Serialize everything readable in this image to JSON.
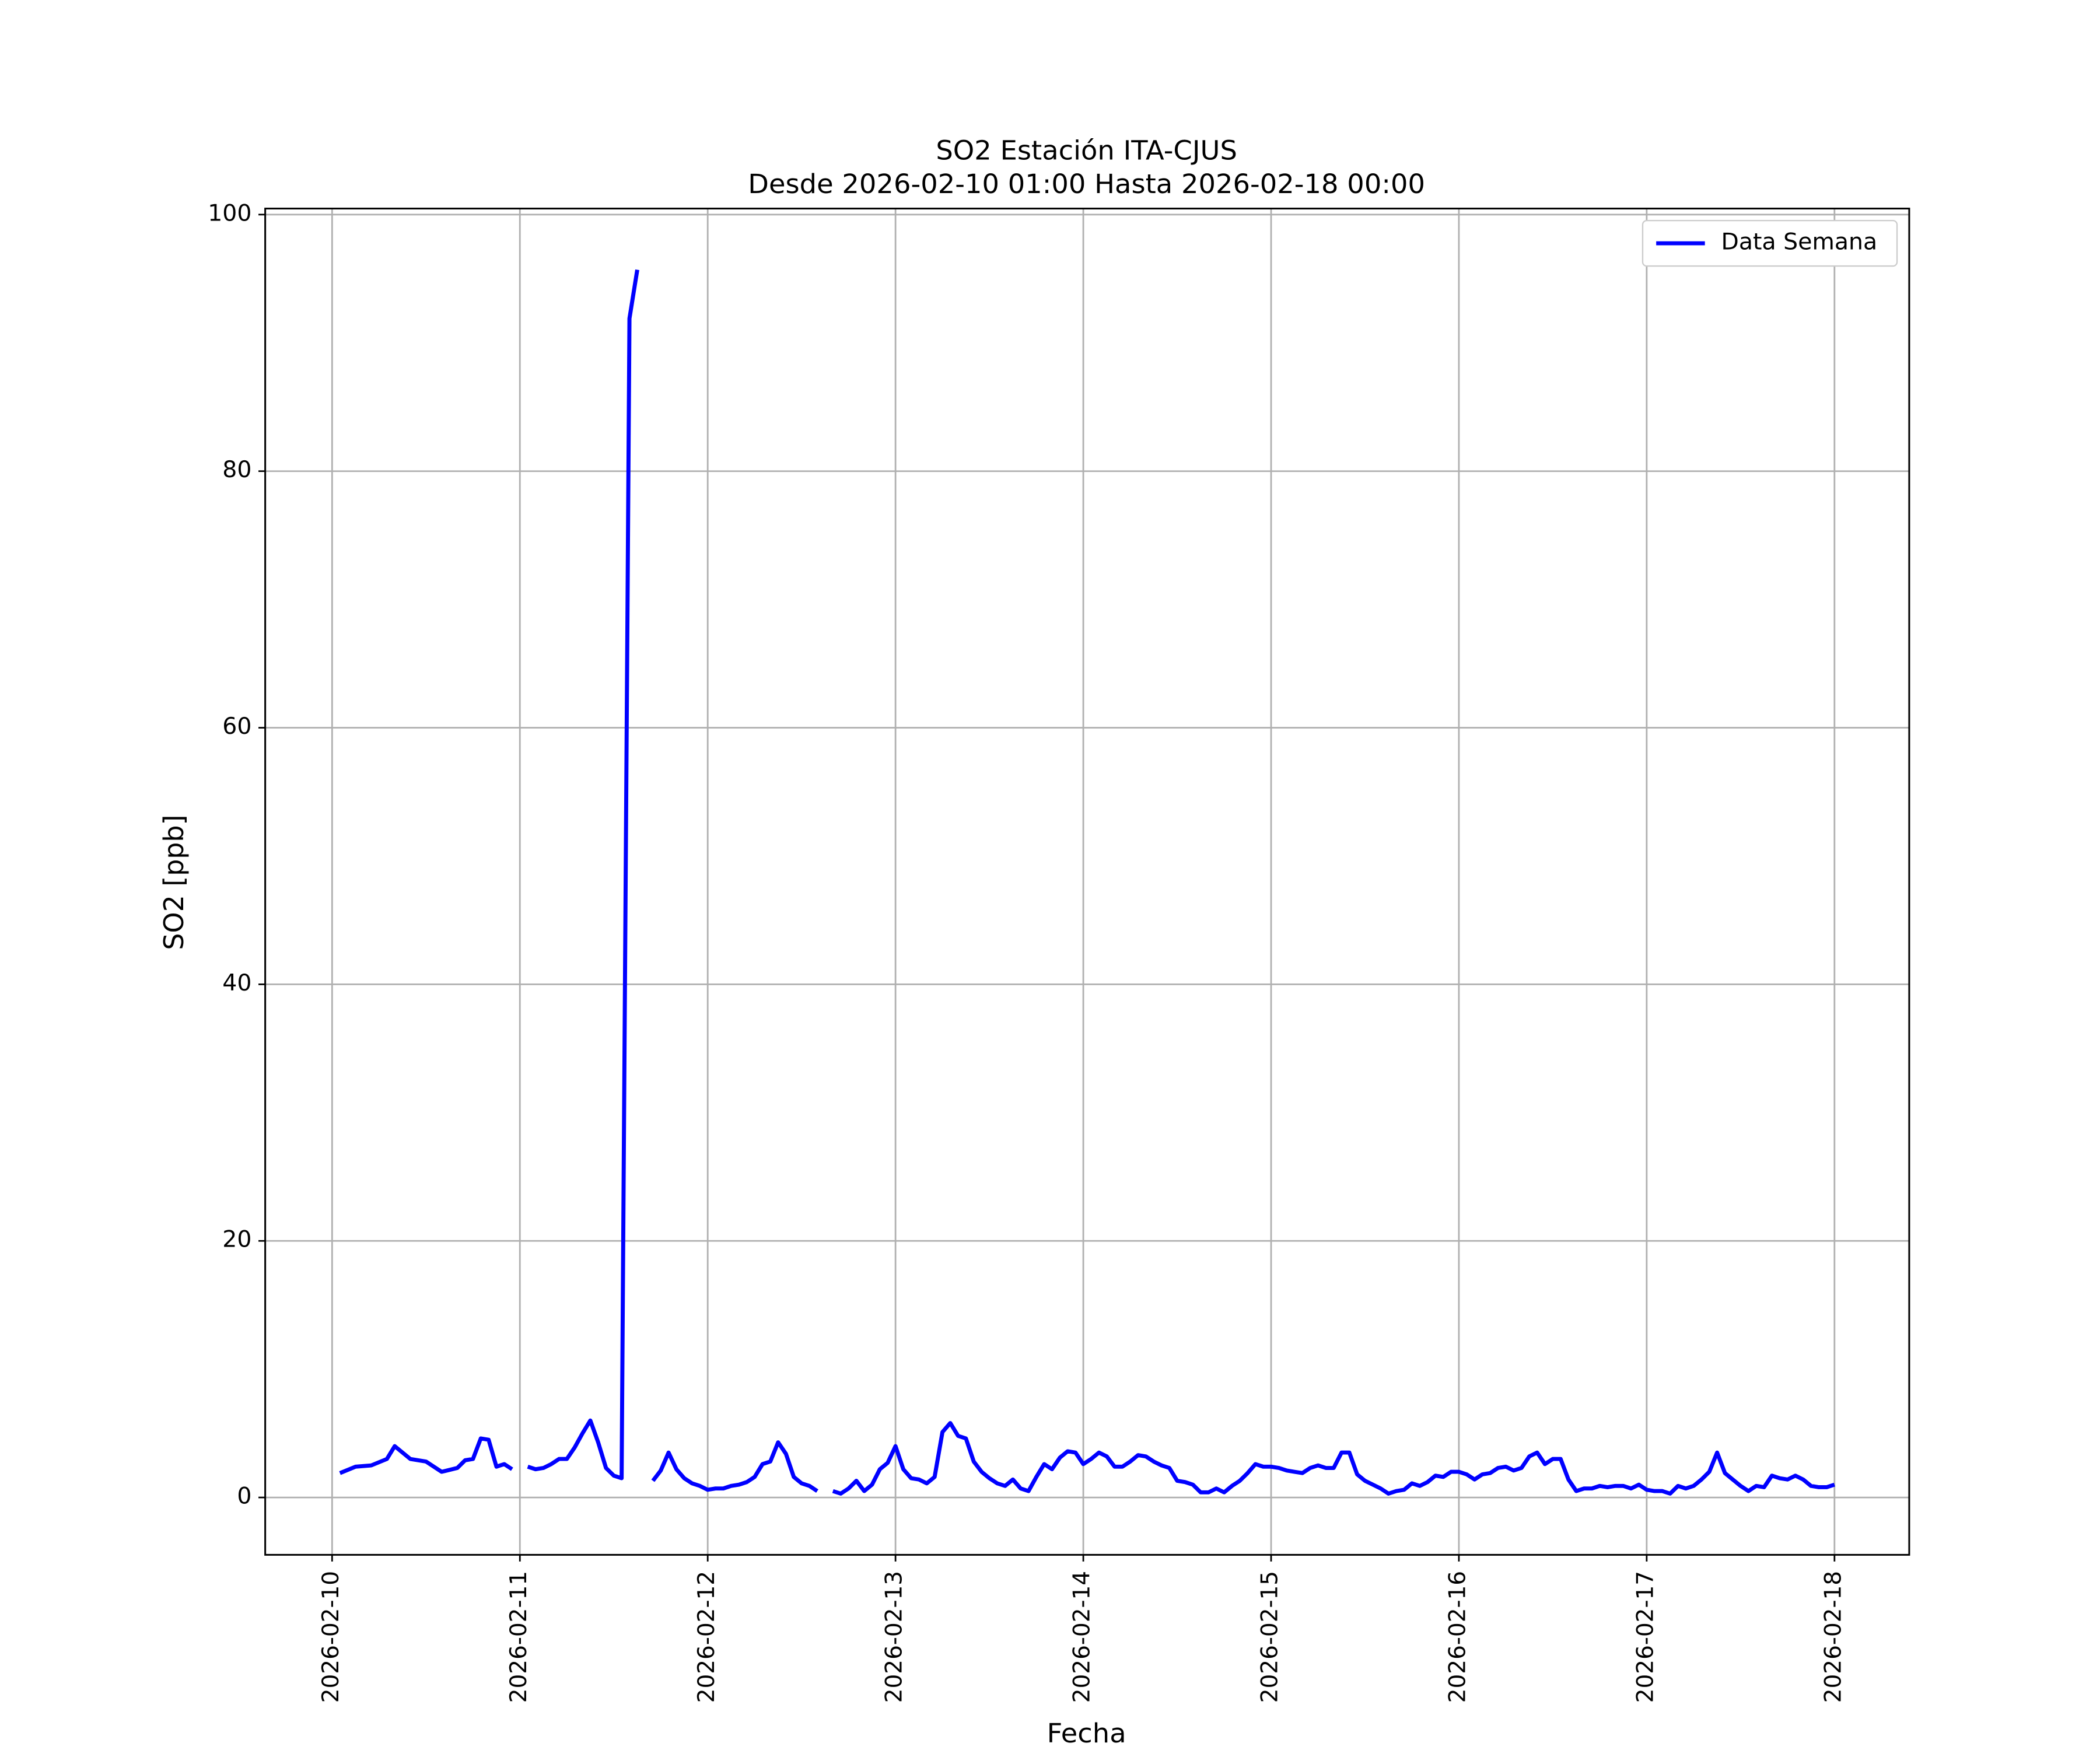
{
  "chart_data": {
    "type": "line",
    "title": "SO2 Estación ITA-CJUS",
    "subtitle": "Desde 2026-02-10 01:00 Hasta 2026-02-18 00:00",
    "xlabel": "Fecha",
    "ylabel": "SO2 [ppb]",
    "x": [
      "2026-02-10 01:00",
      "2026-02-10 03:00",
      "2026-02-10 05:00",
      "2026-02-10 07:00",
      "2026-02-10 08:00",
      "2026-02-10 10:00",
      "2026-02-10 12:00",
      "2026-02-10 14:00",
      "2026-02-10 16:00",
      "2026-02-10 17:00",
      "2026-02-10 18:00",
      "2026-02-10 19:00",
      "2026-02-10 20:00",
      "2026-02-10 21:00",
      "2026-02-10 22:00",
      "2026-02-10 23:00",
      "2026-02-11 00:00",
      "2026-02-11 01:00",
      "2026-02-11 02:00",
      "2026-02-11 03:00",
      "2026-02-11 04:00",
      "2026-02-11 05:00",
      "2026-02-11 06:00",
      "2026-02-11 07:00",
      "2026-02-11 08:00",
      "2026-02-11 09:00",
      "2026-02-11 10:00",
      "2026-02-11 11:00",
      "2026-02-11 12:00",
      "2026-02-11 13:00",
      "2026-02-11 14:00",
      "2026-02-11 15:00",
      "2026-02-11 16:00",
      "2026-02-11 17:00",
      "2026-02-11 18:00",
      "2026-02-11 19:00",
      "2026-02-11 20:00",
      "2026-02-11 21:00",
      "2026-02-11 22:00",
      "2026-02-11 23:00",
      "2026-02-12 00:00",
      "2026-02-12 01:00",
      "2026-02-12 02:00",
      "2026-02-12 03:00",
      "2026-02-12 04:00",
      "2026-02-12 05:00",
      "2026-02-12 06:00",
      "2026-02-12 07:00",
      "2026-02-12 08:00",
      "2026-02-12 09:00",
      "2026-02-12 10:00",
      "2026-02-12 11:00",
      "2026-02-12 12:00",
      "2026-02-12 13:00",
      "2026-02-12 14:00",
      "2026-02-12 15:00",
      "2026-02-12 16:00",
      "2026-02-12 17:00",
      "2026-02-12 18:00",
      "2026-02-12 19:00",
      "2026-02-12 20:00",
      "2026-02-12 21:00",
      "2026-02-12 22:00",
      "2026-02-12 23:00",
      "2026-02-13 00:00",
      "2026-02-13 01:00",
      "2026-02-13 02:00",
      "2026-02-13 03:00",
      "2026-02-13 04:00",
      "2026-02-13 05:00",
      "2026-02-13 06:00",
      "2026-02-13 07:00",
      "2026-02-13 08:00",
      "2026-02-13 09:00",
      "2026-02-13 10:00",
      "2026-02-13 11:00",
      "2026-02-13 12:00",
      "2026-02-13 13:00",
      "2026-02-13 14:00",
      "2026-02-13 15:00",
      "2026-02-13 16:00",
      "2026-02-13 17:00",
      "2026-02-13 18:00",
      "2026-02-13 19:00",
      "2026-02-13 20:00",
      "2026-02-13 21:00",
      "2026-02-13 22:00",
      "2026-02-13 23:00",
      "2026-02-14 00:00",
      "2026-02-14 01:00",
      "2026-02-14 02:00",
      "2026-02-14 03:00",
      "2026-02-14 04:00",
      "2026-02-14 05:00",
      "2026-02-14 06:00",
      "2026-02-14 07:00",
      "2026-02-14 08:00",
      "2026-02-14 09:00",
      "2026-02-14 10:00",
      "2026-02-14 11:00",
      "2026-02-14 12:00",
      "2026-02-14 13:00",
      "2026-02-14 14:00",
      "2026-02-14 15:00",
      "2026-02-14 16:00",
      "2026-02-14 17:00",
      "2026-02-14 18:00",
      "2026-02-14 19:00",
      "2026-02-14 20:00",
      "2026-02-14 21:00",
      "2026-02-14 22:00",
      "2026-02-14 23:00",
      "2026-02-15 00:00",
      "2026-02-15 01:00",
      "2026-02-15 02:00",
      "2026-02-15 03:00",
      "2026-02-15 04:00",
      "2026-02-15 05:00",
      "2026-02-15 06:00",
      "2026-02-15 07:00",
      "2026-02-15 08:00",
      "2026-02-15 09:00",
      "2026-02-15 10:00",
      "2026-02-15 11:00",
      "2026-02-15 12:00",
      "2026-02-15 13:00",
      "2026-02-15 14:00",
      "2026-02-15 15:00",
      "2026-02-15 16:00",
      "2026-02-15 17:00",
      "2026-02-15 18:00",
      "2026-02-15 19:00",
      "2026-02-15 20:00",
      "2026-02-15 21:00",
      "2026-02-15 22:00",
      "2026-02-15 23:00",
      "2026-02-16 00:00",
      "2026-02-16 01:00",
      "2026-02-16 02:00",
      "2026-02-16 03:00",
      "2026-02-16 04:00",
      "2026-02-16 05:00",
      "2026-02-16 06:00",
      "2026-02-16 07:00",
      "2026-02-16 08:00",
      "2026-02-16 09:00",
      "2026-02-16 10:00",
      "2026-02-16 11:00",
      "2026-02-16 12:00",
      "2026-02-16 13:00",
      "2026-02-16 14:00",
      "2026-02-16 15:00",
      "2026-02-16 16:00",
      "2026-02-16 17:00",
      "2026-02-16 18:00",
      "2026-02-16 19:00",
      "2026-02-16 20:00",
      "2026-02-16 21:00",
      "2026-02-16 22:00",
      "2026-02-16 23:00",
      "2026-02-17 00:00",
      "2026-02-17 01:00",
      "2026-02-17 02:00",
      "2026-02-17 03:00",
      "2026-02-17 04:00",
      "2026-02-17 05:00",
      "2026-02-17 06:00",
      "2026-02-17 07:00",
      "2026-02-17 08:00",
      "2026-02-17 09:00",
      "2026-02-17 10:00",
      "2026-02-17 11:00",
      "2026-02-17 12:00",
      "2026-02-17 13:00",
      "2026-02-17 14:00",
      "2026-02-17 15:00",
      "2026-02-17 16:00",
      "2026-02-17 17:00",
      "2026-02-17 18:00",
      "2026-02-17 19:00",
      "2026-02-17 20:00",
      "2026-02-17 21:00",
      "2026-02-17 22:00",
      "2026-02-17 23:00",
      "2026-02-18 00:00"
    ],
    "series": [
      {
        "name": "Data Semana",
        "color": "#0000ff",
        "values": [
          1.9,
          2.4,
          2.5,
          3.0,
          4.0,
          3.0,
          2.8,
          2.0,
          2.3,
          2.9,
          3.0,
          4.6,
          4.5,
          2.4,
          2.6,
          2.2,
          null,
          2.4,
          2.2,
          2.3,
          2.6,
          3.0,
          3.0,
          3.9,
          5.0,
          6.0,
          4.3,
          2.3,
          1.7,
          1.5,
          91.9,
          95.7,
          null,
          1.3,
          2.1,
          3.5,
          2.2,
          1.5,
          1.1,
          0.9,
          0.6,
          0.7,
          0.7,
          0.9,
          1.0,
          1.2,
          1.6,
          2.6,
          2.8,
          4.3,
          3.4,
          1.6,
          1.1,
          0.9,
          0.5,
          null,
          0.5,
          0.3,
          0.7,
          1.3,
          0.5,
          1.0,
          2.2,
          2.7,
          4.0,
          2.2,
          1.5,
          1.4,
          1.1,
          1.6,
          5.1,
          5.8,
          4.8,
          4.6,
          2.8,
          2.0,
          1.5,
          1.1,
          0.9,
          1.4,
          0.7,
          0.5,
          1.6,
          2.6,
          2.2,
          3.1,
          3.6,
          3.5,
          2.6,
          3.0,
          3.5,
          3.2,
          2.4,
          2.4,
          2.8,
          3.3,
          3.2,
          2.8,
          2.5,
          2.3,
          1.3,
          1.2,
          1.0,
          0.4,
          0.4,
          0.7,
          0.4,
          0.9,
          1.3,
          1.9,
          2.6,
          2.4,
          2.4,
          2.3,
          2.1,
          2.0,
          1.9,
          2.3,
          2.5,
          2.3,
          2.3,
          3.5,
          3.5,
          1.8,
          1.3,
          1.0,
          0.7,
          0.3,
          0.5,
          0.6,
          1.1,
          0.9,
          1.2,
          1.7,
          1.6,
          2.0,
          2.0,
          1.8,
          1.4,
          1.8,
          1.9,
          2.3,
          2.4,
          2.1,
          2.3,
          3.2,
          3.5,
          2.6,
          3.0,
          3.0,
          1.4,
          0.5,
          0.7,
          0.7,
          0.9,
          0.8,
          0.9,
          0.9,
          0.7,
          1.0,
          0.6,
          0.5,
          0.5,
          0.3,
          0.9,
          0.7,
          0.9,
          1.4,
          2.0,
          3.5,
          1.9,
          1.4,
          0.9,
          0.5,
          0.9,
          0.8,
          1.7,
          1.5,
          1.4,
          1.7,
          1.4,
          0.9,
          0.8,
          0.8,
          1.0
        ]
      }
    ],
    "xlim": [
      "2026-02-09 15:27",
      "2026-02-18 09:33"
    ],
    "xticks": [
      "2026-02-10",
      "2026-02-11",
      "2026-02-12",
      "2026-02-13",
      "2026-02-14",
      "2026-02-15",
      "2026-02-16",
      "2026-02-17",
      "2026-02-18"
    ],
    "ylim": [
      -4.47,
      100.47
    ],
    "yticks": [
      0,
      20,
      40,
      60,
      80,
      100
    ],
    "grid": true,
    "legend": "upper right"
  }
}
